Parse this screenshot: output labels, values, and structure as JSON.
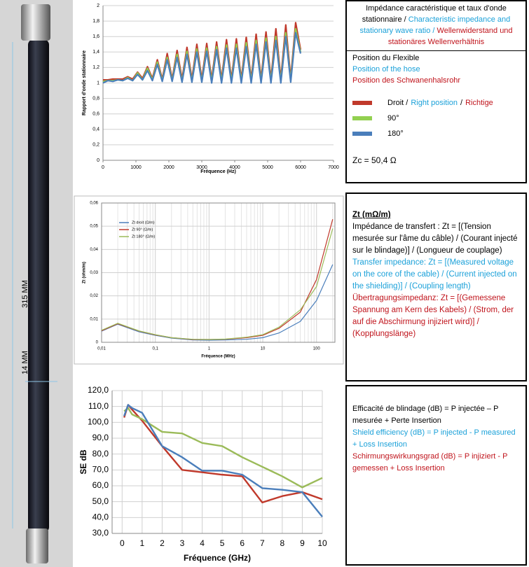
{
  "chart_data": [
    {
      "type": "line",
      "y_label": "Rapport d'onde stationnaire",
      "x_label": "Fréquence (Hz)",
      "x": [
        0,
        150,
        300,
        450,
        600,
        750,
        900,
        1050,
        1200,
        1350,
        1500,
        1650,
        1800,
        1950,
        2100,
        2250,
        2400,
        2550,
        2700,
        2850,
        3000,
        3150,
        3300,
        3450,
        3600,
        3750,
        3900,
        4050,
        4200,
        4350,
        4500,
        4650,
        4800,
        4950,
        5100,
        5250,
        5400,
        5550,
        5700,
        5850,
        6000
      ],
      "series": [
        {
          "color": "#c0392b",
          "values": [
            1.04,
            1.04,
            1.05,
            1.05,
            1.05,
            1.08,
            1.05,
            1.14,
            1.06,
            1.21,
            1.06,
            1.3,
            1.05,
            1.38,
            1.05,
            1.42,
            1.05,
            1.46,
            1.05,
            1.5,
            1.05,
            1.51,
            1.05,
            1.53,
            1.05,
            1.56,
            1.05,
            1.57,
            1.05,
            1.59,
            1.05,
            1.63,
            1.05,
            1.66,
            1.05,
            1.7,
            1.05,
            1.75,
            1.06,
            1.78,
            1.43
          ]
        },
        {
          "color": "#92d050",
          "values": [
            1.02,
            1.03,
            1.03,
            1.04,
            1.03,
            1.07,
            1.03,
            1.13,
            1.04,
            1.19,
            1.04,
            1.27,
            1.03,
            1.33,
            1.03,
            1.37,
            1.02,
            1.41,
            1.02,
            1.44,
            1.02,
            1.45,
            1.02,
            1.47,
            1.02,
            1.49,
            1.02,
            1.5,
            1.02,
            1.52,
            1.02,
            1.55,
            1.02,
            1.58,
            1.02,
            1.6,
            1.02,
            1.65,
            1.03,
            1.7,
            1.4
          ]
        },
        {
          "color": "#4a7ebb",
          "values": [
            1.0,
            1.03,
            1.02,
            1.04,
            1.03,
            1.06,
            1.03,
            1.11,
            1.04,
            1.16,
            1.03,
            1.24,
            1.02,
            1.3,
            1.02,
            1.33,
            1.01,
            1.37,
            1.01,
            1.4,
            1.01,
            1.41,
            1.0,
            1.43,
            1.0,
            1.45,
            1.0,
            1.45,
            1.0,
            1.47,
            1.0,
            1.5,
            1.0,
            1.53,
            1.0,
            1.55,
            1.0,
            1.6,
            1.01,
            1.65,
            1.38
          ]
        }
      ],
      "xlim": [
        0,
        7000
      ],
      "xticks": [
        0,
        1000,
        2000,
        3000,
        4000,
        5000,
        6000,
        7000
      ],
      "ylim": [
        0,
        2
      ],
      "yticks": [
        0,
        {
          "value": 0.2,
          "label": "0,2"
        },
        {
          "value": 0.4,
          "label": "0,4"
        },
        {
          "value": 0.6,
          "label": "0,6"
        },
        {
          "value": 0.8,
          "label": "0,8"
        },
        1,
        {
          "value": 1.2,
          "label": "1,2"
        },
        {
          "value": 1.4,
          "label": "1,4"
        },
        {
          "value": 1.6,
          "label": "1,6"
        },
        {
          "value": 1.8,
          "label": "1,8"
        },
        2
      ],
      "grid": "y"
    },
    {
      "type": "line",
      "log_x": true,
      "y_label": "Zt (ohm/m)",
      "x_label": "Fréquence (MHz)",
      "x": [
        0.01,
        0.02,
        0.05,
        0.1,
        0.2,
        0.5,
        1,
        2,
        5,
        10,
        20,
        50,
        100,
        200
      ],
      "series": [
        {
          "name": "Zt droit (Ω/m)",
          "color": "#4a7ebb",
          "values": [
            0.0048,
            0.0078,
            0.0045,
            0.003,
            0.0018,
            0.001,
            0.0009,
            0.001,
            0.0013,
            0.002,
            0.004,
            0.009,
            0.018,
            0.0335
          ]
        },
        {
          "name": "Zt 90° (Ω/m)",
          "color": "#c0392b",
          "values": [
            0.005,
            0.008,
            0.0048,
            0.0032,
            0.002,
            0.0012,
            0.0012,
            0.0013,
            0.002,
            0.003,
            0.006,
            0.013,
            0.027,
            0.053
          ]
        },
        {
          "name": "Zt 180° (Ω/m)",
          "color": "#9bbb59",
          "values": [
            0.0052,
            0.0082,
            0.0049,
            0.0033,
            0.002,
            0.0013,
            0.0012,
            0.0014,
            0.0022,
            0.0033,
            0.0065,
            0.014,
            0.024,
            0.049
          ]
        }
      ],
      "xlim": [
        0.01,
        220
      ],
      "xticks": [
        {
          "value": 0.01,
          "label": "0,01"
        },
        {
          "value": 0.1,
          "label": "0,1"
        },
        1,
        10,
        100
      ],
      "ylim": [
        0,
        0.06
      ],
      "yticks": [
        0,
        {
          "value": 0.01,
          "label": "0,01"
        },
        {
          "value": 0.02,
          "label": "0,02"
        },
        {
          "value": 0.03,
          "label": "0,03"
        },
        {
          "value": 0.04,
          "label": "0,04"
        },
        {
          "value": 0.05,
          "label": "0,05"
        },
        {
          "value": 0.06,
          "label": "0,06"
        }
      ],
      "grid": "both",
      "legend": "upper left"
    },
    {
      "type": "line",
      "y_label": "SE dB",
      "x_label": "Fréquence (GHz)",
      "x": [
        0.1,
        0.3,
        0.5,
        1,
        2,
        3,
        4,
        5,
        6,
        7,
        8,
        9,
        10
      ],
      "series": [
        {
          "color": "#c0392b",
          "values": [
            103,
            111,
            108,
            101,
            85,
            70,
            68.5,
            67,
            66,
            49.5,
            53.5,
            56,
            51.5
          ]
        },
        {
          "color": "#9bbb59",
          "values": [
            107,
            109,
            105,
            102,
            94,
            93,
            87,
            85,
            78,
            72,
            66,
            59,
            65
          ]
        },
        {
          "color": "#4a7ebb",
          "values": [
            104,
            111,
            109,
            106,
            85,
            78,
            69.5,
            69.5,
            67,
            58.5,
            57.5,
            56,
            40.5
          ]
        }
      ],
      "xlim": [
        -0.5,
        10
      ],
      "xticks": [
        0,
        1,
        2,
        3,
        4,
        5,
        6,
        7,
        8,
        9,
        10
      ],
      "ylim": [
        30,
        120
      ],
      "yticks": [
        {
          "value": 30,
          "label": "30,0"
        },
        {
          "value": 40,
          "label": "40,0"
        },
        {
          "value": 50,
          "label": "50,0"
        },
        {
          "value": 60,
          "label": "60,0"
        },
        {
          "value": 70,
          "label": "70,0"
        },
        {
          "value": 80,
          "label": "80,0"
        },
        {
          "value": 90,
          "label": "90,0"
        },
        {
          "value": 100,
          "label": "100,0"
        },
        {
          "value": 110,
          "label": "110,0"
        },
        {
          "value": 120,
          "label": "120,0"
        }
      ],
      "grid": "both"
    }
  ],
  "dimensions": {
    "length": "315 MM",
    "diameter": "14 MM"
  },
  "box1": {
    "title_fr": "Impédance caractéristique et taux d'onde stationnaire /",
    "title_en": "Characteristic impedance and stationary wave ratio /",
    "title_de": "Wellenwiderstand und stationäres Wellenverhältnis",
    "position_fr": "Position du Flexible",
    "position_en": "Position of the hose",
    "position_de": "Position des Schwanenhalsrohr",
    "legend": [
      [
        "Droit /",
        "Right position",
        "/",
        "Richtige"
      ],
      [
        "90°"
      ],
      [
        "180°"
      ]
    ],
    "zc": "Zc =  50,4 Ω"
  },
  "box2": {
    "heading": "Zt (mΩ/m)",
    "fr": "Impédance de transfert : Zt = [(Tension mesurée sur l'âme du câble) / (Courant injecté sur le blindage)] / (Longueur de couplage)",
    "en": "Transfer impedance: Zt = [(Measured voltage on the core of the cable) / (Current injected on the shielding)] / (Coupling length)",
    "de": "Übertragungsimpedanz: Zt = [(Gemessene Spannung am Kern des Kabels) / (Strom, der auf die Abschirmung injiziert wird)] / (Kopplungslänge)"
  },
  "box3": {
    "fr": "Efficacité de blindage (dB) = P injectée – P mesurée +  Perte Insertion",
    "en": "Shield efficiency (dB) = P injected - P measured + Loss Insertion",
    "de": "Schirmungswirkungsgrad (dB) = P injiziert - P gemessen + Loss Insertion"
  }
}
